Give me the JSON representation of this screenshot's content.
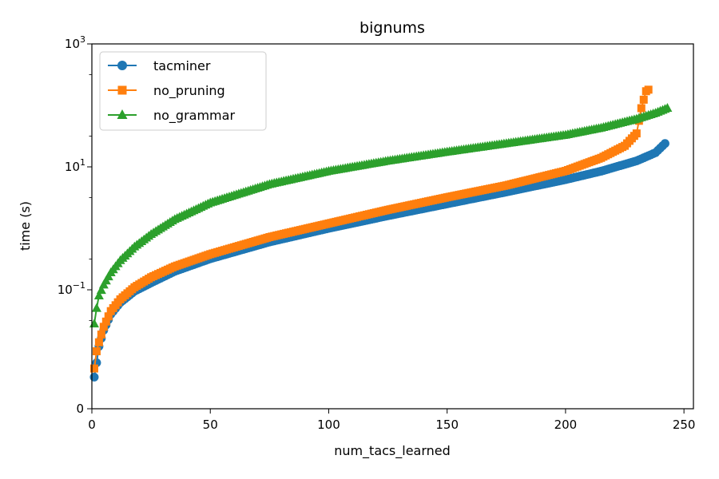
{
  "chart_data": {
    "type": "line",
    "title": "bignums",
    "xlabel": "num_tacs_learned",
    "ylabel": "time (s)",
    "xlim": [
      0,
      254
    ],
    "x_ticks": [
      "0",
      "50",
      "100",
      "150",
      "200",
      "250"
    ],
    "y_scale": "symlog",
    "y_ticks": [
      "0",
      "10^-1",
      "10^1",
      "10^3"
    ],
    "grid": false,
    "legend_position": "upper-left",
    "series": [
      {
        "name": "tacminer",
        "color": "#1f77b4",
        "marker": "circle",
        "points": [
          [
            1,
            0.0055
          ],
          [
            2,
            0.008
          ],
          [
            3,
            0.012
          ],
          [
            5,
            0.022
          ],
          [
            8,
            0.04
          ],
          [
            12,
            0.062
          ],
          [
            18,
            0.095
          ],
          [
            25,
            0.13
          ],
          [
            35,
            0.2
          ],
          [
            50,
            0.32
          ],
          [
            75,
            0.6
          ],
          [
            100,
            1.0
          ],
          [
            125,
            1.6
          ],
          [
            150,
            2.5
          ],
          [
            175,
            3.9
          ],
          [
            200,
            6.2
          ],
          [
            215,
            8.5
          ],
          [
            230,
            12.5
          ],
          [
            238,
            17
          ],
          [
            242,
            24
          ]
        ]
      },
      {
        "name": "no_pruning",
        "color": "#ff7f0e",
        "marker": "square",
        "points": [
          [
            1,
            0.007
          ],
          [
            2,
            0.01
          ],
          [
            3,
            0.014
          ],
          [
            5,
            0.025
          ],
          [
            8,
            0.045
          ],
          [
            12,
            0.07
          ],
          [
            18,
            0.11
          ],
          [
            25,
            0.16
          ],
          [
            35,
            0.24
          ],
          [
            50,
            0.38
          ],
          [
            75,
            0.72
          ],
          [
            100,
            1.2
          ],
          [
            125,
            2.0
          ],
          [
            150,
            3.2
          ],
          [
            175,
            5.0
          ],
          [
            200,
            8.6
          ],
          [
            215,
            14
          ],
          [
            225,
            22
          ],
          [
            230,
            35
          ],
          [
            232,
            90
          ],
          [
            234,
            170
          ],
          [
            235,
            180
          ]
        ]
      },
      {
        "name": "no_grammar",
        "color": "#2ca02c",
        "marker": "triangle",
        "points": [
          [
            1,
            0.028
          ],
          [
            2,
            0.05
          ],
          [
            3,
            0.08
          ],
          [
            5,
            0.12
          ],
          [
            8,
            0.19
          ],
          [
            12,
            0.3
          ],
          [
            18,
            0.5
          ],
          [
            25,
            0.8
          ],
          [
            35,
            1.4
          ],
          [
            50,
            2.6
          ],
          [
            75,
            5.2
          ],
          [
            100,
            8.5
          ],
          [
            125,
            12.5
          ],
          [
            150,
            17.5
          ],
          [
            175,
            24
          ],
          [
            200,
            33
          ],
          [
            215,
            43
          ],
          [
            230,
            60
          ],
          [
            238,
            75
          ],
          [
            243,
            90
          ]
        ]
      }
    ]
  }
}
